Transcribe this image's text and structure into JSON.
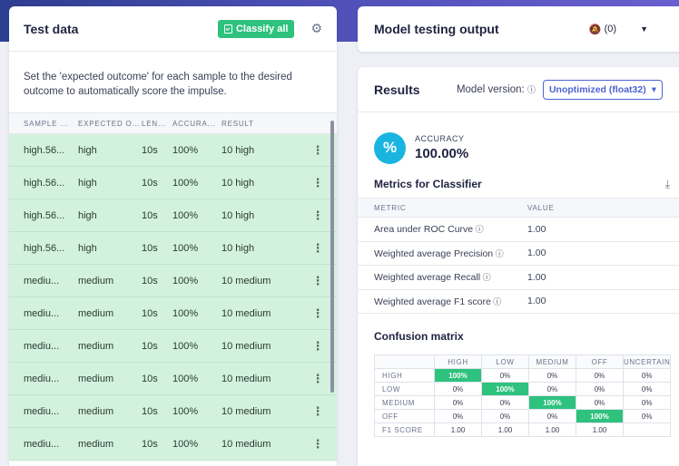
{
  "left": {
    "title": "Test data",
    "classify_label": "Classify all",
    "description": "Set the 'expected outcome' for each sample to the desired outcome to automatically score the impulse.",
    "columns": [
      "SAMPLE ...",
      "EXPECTED O...",
      "LEN...",
      "ACCURA...",
      "RESULT"
    ],
    "rows": [
      {
        "sample": "high.56...",
        "expected": "high",
        "length": "10s",
        "accuracy": "100%",
        "result": "10 high"
      },
      {
        "sample": "high.56...",
        "expected": "high",
        "length": "10s",
        "accuracy": "100%",
        "result": "10 high"
      },
      {
        "sample": "high.56...",
        "expected": "high",
        "length": "10s",
        "accuracy": "100%",
        "result": "10 high"
      },
      {
        "sample": "high.56...",
        "expected": "high",
        "length": "10s",
        "accuracy": "100%",
        "result": "10 high"
      },
      {
        "sample": "mediu...",
        "expected": "medium",
        "length": "10s",
        "accuracy": "100%",
        "result": "10 medium"
      },
      {
        "sample": "mediu...",
        "expected": "medium",
        "length": "10s",
        "accuracy": "100%",
        "result": "10 medium"
      },
      {
        "sample": "mediu...",
        "expected": "medium",
        "length": "10s",
        "accuracy": "100%",
        "result": "10 medium"
      },
      {
        "sample": "mediu...",
        "expected": "medium",
        "length": "10s",
        "accuracy": "100%",
        "result": "10 medium"
      },
      {
        "sample": "mediu...",
        "expected": "medium",
        "length": "10s",
        "accuracy": "100%",
        "result": "10 medium"
      },
      {
        "sample": "mediu...",
        "expected": "medium",
        "length": "10s",
        "accuracy": "100%",
        "result": "10 medium"
      }
    ]
  },
  "output": {
    "title": "Model testing output",
    "notif_count": "(0)"
  },
  "results": {
    "title": "Results",
    "model_version_label": "Model version:",
    "model_version_value": "Unoptimized (float32)",
    "accuracy_label": "ACCURACY",
    "accuracy_value": "100.00%",
    "accuracy_symbol": "%",
    "metrics_title": "Metrics for Classifier",
    "metric_col": "METRIC",
    "value_col": "VALUE",
    "metrics": [
      {
        "name": "Area under ROC Curve",
        "value": "1.00"
      },
      {
        "name": "Weighted average Precision",
        "value": "1.00"
      },
      {
        "name": "Weighted average Recall",
        "value": "1.00"
      },
      {
        "name": "Weighted average F1 score",
        "value": "1.00"
      }
    ],
    "confusion_title": "Confusion matrix",
    "confusion_cols": [
      "HIGH",
      "LOW",
      "MEDIUM",
      "OFF",
      "UNCERTAIN"
    ],
    "confusion_rows": [
      {
        "label": "HIGH",
        "cells": [
          "100%",
          "0%",
          "0%",
          "0%",
          "0%"
        ],
        "hi": 0
      },
      {
        "label": "LOW",
        "cells": [
          "0%",
          "100%",
          "0%",
          "0%",
          "0%"
        ],
        "hi": 1
      },
      {
        "label": "MEDIUM",
        "cells": [
          "0%",
          "0%",
          "100%",
          "0%",
          "0%"
        ],
        "hi": 2
      },
      {
        "label": "OFF",
        "cells": [
          "0%",
          "0%",
          "0%",
          "100%",
          "0%"
        ],
        "hi": 3
      },
      {
        "label": "F1 SCORE",
        "cells": [
          "1.00",
          "1.00",
          "1.00",
          "1.00",
          ""
        ],
        "hi": -1
      }
    ]
  },
  "colors": {
    "accent": "#4c63d2",
    "success": "#2ec27e",
    "row_bg": "#d3f2dd",
    "accuracy_circle": "#19b5e0"
  },
  "icons": {
    "settings": "gear-icon",
    "notifications": "bell-off-icon",
    "download": "download-icon",
    "help": "help-circle-icon"
  }
}
